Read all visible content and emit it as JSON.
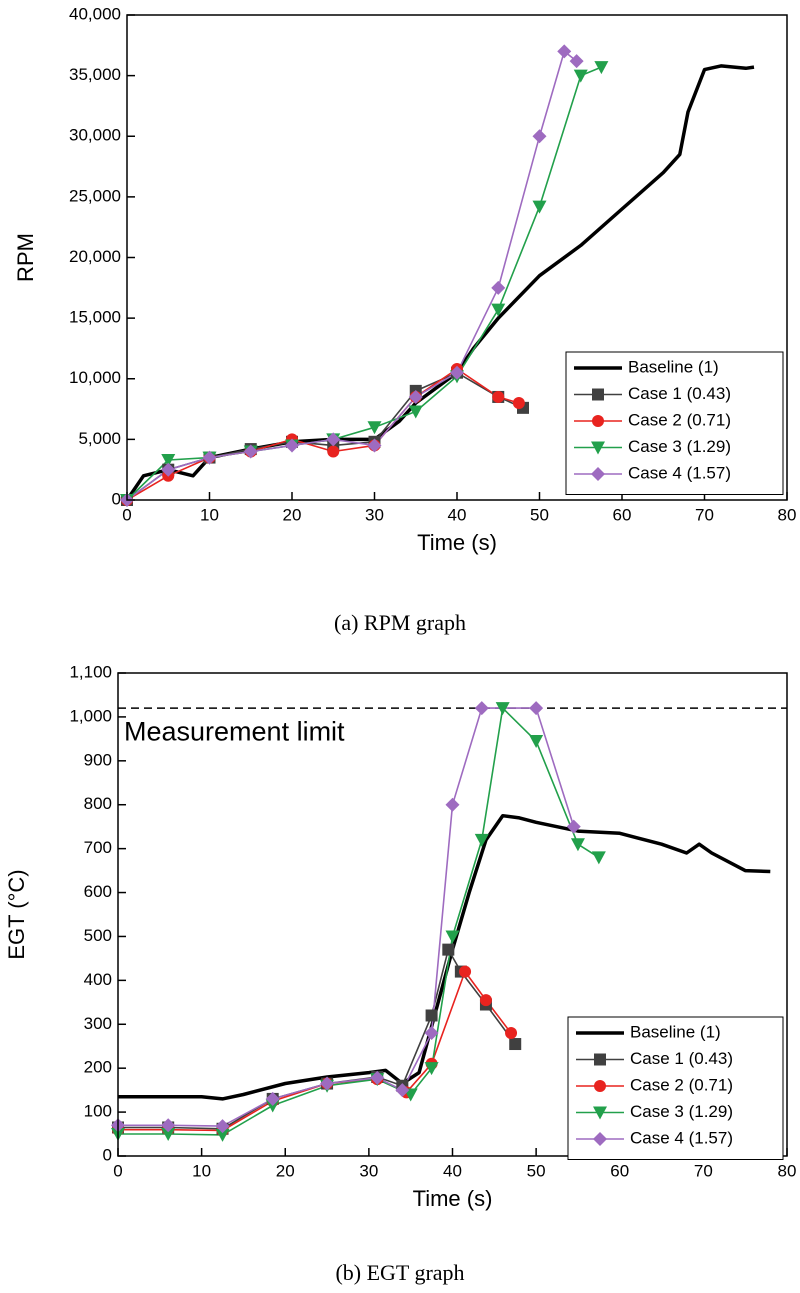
{
  "chart_data": [
    {
      "type": "line",
      "caption": "(a)  RPM  graph",
      "x_label": "Time (s)",
      "y_label": "RPM",
      "xlim": [
        0,
        80
      ],
      "xticks": [
        0,
        10,
        20,
        30,
        40,
        50,
        60,
        70,
        80
      ],
      "ylim": [
        0,
        40000
      ],
      "yticks": [
        0,
        {
          "value": 5000,
          "label": "5,000"
        },
        {
          "value": 10000,
          "label": "10,000"
        },
        {
          "value": 15000,
          "label": "15,000"
        },
        {
          "value": 20000,
          "label": "20,000"
        },
        {
          "value": 25000,
          "label": "25,000"
        },
        {
          "value": 30000,
          "label": "30,000"
        },
        {
          "value": 35000,
          "label": "35,000"
        },
        {
          "value": 40000,
          "label": "40,000"
        }
      ],
      "legend": "lower right",
      "series": [
        {
          "name": "Baseline (1)",
          "color": "#000000",
          "marker": "none",
          "x": [
            0,
            2,
            5,
            8,
            10,
            15,
            20,
            25,
            30,
            33,
            35,
            38,
            40,
            42,
            45,
            50,
            55,
            60,
            65,
            67,
            68,
            70,
            72,
            75,
            76
          ],
          "values": [
            0,
            2000,
            2500,
            2000,
            3500,
            4200,
            4800,
            5000,
            5000,
            6500,
            8000,
            9500,
            10500,
            12500,
            15000,
            18500,
            21000,
            24000,
            27000,
            28500,
            32000,
            35500,
            35800,
            35600,
            35700
          ]
        },
        {
          "name": "Case 1 (0.43)",
          "color": "#404040",
          "marker": "square",
          "x": [
            0,
            5,
            10,
            15,
            20,
            25,
            30,
            35,
            40,
            45,
            48
          ],
          "values": [
            0,
            2500,
            3500,
            4200,
            4800,
            4500,
            4800,
            9000,
            10500,
            8500,
            7600
          ]
        },
        {
          "name": "Case 2 (0.71)",
          "color": "#e8231f",
          "marker": "circle",
          "x": [
            0,
            5,
            10,
            15,
            20,
            25,
            30,
            35,
            40,
            45,
            47.5
          ],
          "values": [
            0,
            2000,
            3500,
            4000,
            5000,
            4000,
            4500,
            8500,
            10800,
            8500,
            8000
          ]
        },
        {
          "name": "Case 3 (1.29)",
          "color": "#22a04b",
          "marker": "triangle-down",
          "x": [
            0,
            5,
            10,
            15,
            20,
            25,
            30,
            35,
            40,
            45,
            50,
            55,
            57.5
          ],
          "values": [
            0,
            3300,
            3500,
            4000,
            4500,
            5000,
            6000,
            7300,
            10200,
            15700,
            24200,
            35000,
            35700
          ]
        },
        {
          "name": "Case 4 (1.57)",
          "color": "#9e6bc0",
          "marker": "diamond",
          "x": [
            0,
            5,
            10,
            15,
            20,
            25,
            30,
            35,
            40,
            45,
            50,
            53,
            54.5
          ],
          "values": [
            0,
            2500,
            3500,
            4000,
            4500,
            5000,
            4500,
            8500,
            10500,
            17500,
            30000,
            37000,
            36200
          ]
        }
      ]
    },
    {
      "type": "line",
      "caption": "(b)  EGT  graph",
      "x_label": "Time (s)",
      "y_label": "EGT (°C)",
      "xlim": [
        0,
        80
      ],
      "xticks": [
        0,
        10,
        20,
        30,
        40,
        50,
        60,
        70,
        80
      ],
      "ylim": [
        0,
        1100
      ],
      "yticks": [
        0,
        100,
        200,
        300,
        400,
        500,
        600,
        700,
        800,
        900,
        {
          "value": 1000,
          "label": "1,000"
        },
        {
          "value": 1100,
          "label": "1,100"
        }
      ],
      "reference_line": {
        "value": 1020,
        "label": "Measurement limit"
      },
      "legend": "lower right",
      "series": [
        {
          "name": "Baseline (1)",
          "color": "#000000",
          "marker": "none",
          "x": [
            0,
            10,
            12.5,
            15,
            20,
            25,
            30,
            32,
            34,
            36,
            38,
            40,
            42,
            44,
            46,
            48,
            50,
            55,
            60,
            65,
            68,
            69.5,
            71,
            75,
            78
          ],
          "values": [
            135,
            135,
            130,
            140,
            165,
            180,
            190,
            195,
            165,
            190,
            330,
            470,
            600,
            720,
            775,
            770,
            760,
            740,
            735,
            710,
            690,
            710,
            690,
            650,
            648
          ]
        },
        {
          "name": "Case 1 (0.43)",
          "color": "#404040",
          "marker": "square",
          "x": [
            0,
            6,
            12.5,
            18.5,
            25,
            31,
            34,
            37.5,
            39.5,
            41,
            44,
            47.5
          ],
          "values": [
            65,
            65,
            62,
            130,
            165,
            180,
            160,
            320,
            470,
            420,
            345,
            255
          ]
        },
        {
          "name": "Case 2 (0.71)",
          "color": "#e8231f",
          "marker": "circle",
          "x": [
            0,
            6,
            12.5,
            18.5,
            25,
            31,
            34.5,
            37.5,
            41.5,
            44,
            47
          ],
          "values": [
            60,
            60,
            58,
            125,
            165,
            175,
            145,
            210,
            420,
            355,
            280
          ]
        },
        {
          "name": "Case 3 (1.29)",
          "color": "#22a04b",
          "marker": "triangle-down",
          "x": [
            0,
            6,
            12.5,
            18.5,
            25,
            31,
            35,
            37.5,
            40,
            43.5,
            46,
            50,
            55,
            57.5
          ],
          "values": [
            50,
            50,
            48,
            115,
            160,
            175,
            140,
            200,
            500,
            720,
            1020,
            945,
            710,
            680
          ]
        },
        {
          "name": "Case 4 (1.57)",
          "color": "#9e6bc0",
          "marker": "diamond",
          "x": [
            0,
            6,
            12.5,
            18.5,
            25,
            31,
            34,
            37.5,
            40,
            43.5,
            50,
            54.5
          ],
          "values": [
            70,
            70,
            68,
            130,
            165,
            178,
            150,
            280,
            800,
            1020,
            1020,
            750
          ]
        }
      ]
    }
  ]
}
